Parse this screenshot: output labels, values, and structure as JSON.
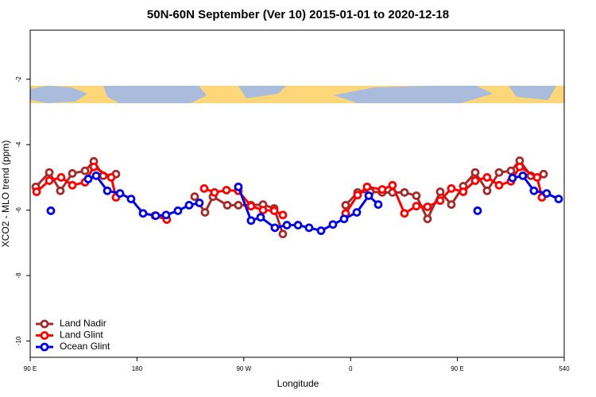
{
  "chart_data": {
    "type": "line",
    "title": "50N-60N September (Ver 10)   2015-01-01 to 2020-12-18",
    "xlabel": "Longitude",
    "ylabel": "XCO2 - MLO trend (ppm)",
    "xlim": [
      90,
      540
    ],
    "ylim": [
      -10.5,
      -0.5
    ],
    "xticks": [
      {
        "value": 90,
        "label": "90 E"
      },
      180,
      {
        "value": 270,
        "label": "90 W"
      },
      {
        "value": 360,
        "label": "0"
      },
      {
        "value": 450,
        "label": "90 E"
      },
      540
    ],
    "yticks": [
      -2,
      -4,
      -6,
      -8,
      -10
    ],
    "legend": "bottom-left",
    "series": [
      {
        "name": "Land Nadir",
        "color": "#a52a2a",
        "x": [
          94.7,
          106.1,
          115.4,
          125.5,
          136.2,
          143.6,
          151.6,
          162.3,
          null,
          228.6,
          237.3,
          244.0,
          256.1,
          265.4,
          276.1,
          286.2,
          295.6,
          302.9,
          null,
          355.8,
          365.9,
          376.6,
          386.6,
          395.3,
          405.4,
          415.4,
          424.8,
          435.5,
          444.9,
          454.9,
          465.0,
          475.0,
          485.1,
          495.1,
          502.5,
          511.9,
          522.6
        ],
        "values": [
          -5.29,
          -4.85,
          -5.41,
          -4.88,
          -4.8,
          -4.51,
          -4.95,
          -4.9,
          null,
          -5.59,
          -6.07,
          -5.59,
          -5.85,
          -5.85,
          -5.85,
          -5.83,
          -5.95,
          -6.73,
          null,
          -5.85,
          -5.46,
          -5.44,
          -5.46,
          -5.46,
          -5.46,
          -5.56,
          -6.27,
          -5.44,
          -5.83,
          -5.27,
          -4.85,
          -5.41,
          -4.85,
          -4.8,
          -4.49,
          -4.95,
          -4.9
        ]
      },
      {
        "name": "Land Glint",
        "color": "#ff0000",
        "x": [
          95.4,
          106.1,
          116.1,
          125.5,
          136.2,
          143.6,
          158.3,
          162.3,
          null,
          195.1,
          205.1,
          null,
          236.6,
          245.3,
          255.4,
          265.4,
          276.1,
          286.2,
          295.6,
          302.9,
          null,
          355.8,
          365.9,
          373.9,
          386.6,
          395.3,
          405.4,
          415.4,
          424.8,
          435.5,
          444.9,
          454.9,
          465.0,
          475.0,
          485.1,
          495.1,
          502.5,
          517.2,
          521.2
        ],
        "values": [
          -5.44,
          -5.1,
          -5.0,
          -5.24,
          -5.15,
          -4.68,
          -5.0,
          -5.61,
          null,
          -6.17,
          -6.29,
          null,
          -5.34,
          -5.46,
          -5.39,
          -5.41,
          -5.88,
          -6.0,
          -6.02,
          -6.15,
          null,
          -6.1,
          -5.54,
          -5.29,
          -5.37,
          -5.24,
          -6.1,
          -5.88,
          -5.9,
          -5.71,
          -5.34,
          -5.44,
          -5.1,
          -5.0,
          -5.24,
          -5.12,
          -4.68,
          -5.0,
          -5.61
        ]
      },
      {
        "name": "Ocean Glint",
        "color": "#0000e6",
        "x": [
          107.4,
          null,
          138.9,
          145.6,
          155.0,
          165.7,
          175.0,
          185.1,
          195.8,
          204.5,
          214.5,
          223.9,
          232.6,
          null,
          265.4,
          276.1,
          284.2,
          296.2,
          306.3,
          315.7,
          325.0,
          335.1,
          345.1,
          354.5,
          365.2,
          375.3,
          383.3,
          null,
          467.0,
          null,
          496.4,
          505.1,
          514.5,
          525.2,
          535.3
        ],
        "values": [
          -6.02,
          null,
          -5.05,
          -4.95,
          -5.41,
          -5.49,
          -5.66,
          -6.1,
          -6.17,
          -6.15,
          -6.02,
          -5.85,
          -5.78,
          null,
          -5.29,
          -6.32,
          -6.22,
          -6.54,
          -6.46,
          -6.46,
          -6.54,
          -6.63,
          -6.44,
          -6.27,
          -6.07,
          -5.56,
          -5.83,
          null,
          -6.02,
          null,
          -5.02,
          -4.95,
          -5.41,
          -5.49,
          -5.66
        ]
      }
    ]
  }
}
